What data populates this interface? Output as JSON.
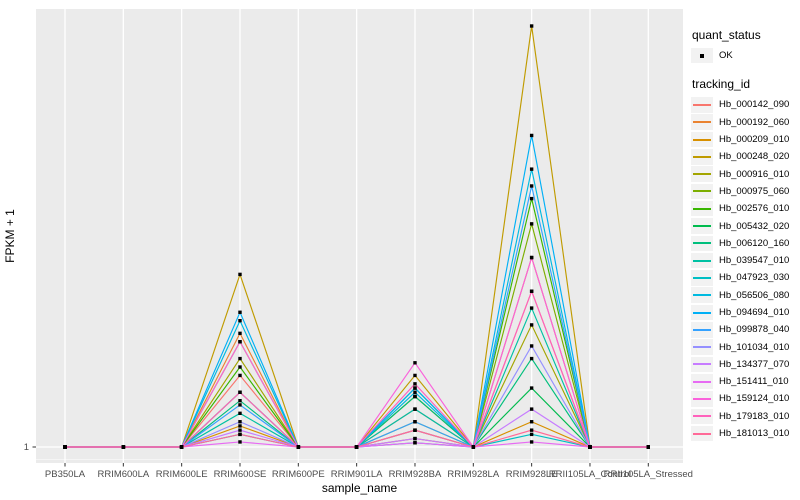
{
  "legend": {
    "quant_status": {
      "title": "quant_status",
      "items": [
        {
          "label": "OK"
        }
      ]
    },
    "tracking_id": {
      "title": "tracking_id"
    }
  },
  "chart_data": {
    "type": "line",
    "title": "",
    "xlabel": "sample_name",
    "ylabel": "FPKM + 1",
    "y_axis": {
      "scale": "log-like, only the value 1 is labeled",
      "ticks": [
        "1"
      ],
      "baseline_value": 1
    },
    "grid": "ggplot gray panel with white gridlines",
    "legend_position": "right",
    "point_marker": "small black square (quant_status = OK at every point)",
    "categories": [
      "PB350LA",
      "RRIM600LA",
      "RRIM600LE",
      "RRIM600SE",
      "RRIM600PE",
      "RRIM901LA",
      "RRIM928BA",
      "RRIM928LA",
      "RRIM928LE",
      "RRII105LA_Control",
      "RRII105LA_Stressed"
    ],
    "values_note": "values are relative peak heights above baseline (0 = FPKM+1 of 1), scaled so tallest peak = 1; peaks occur only at RRIM600SE, RRIM928BA and RRIM928LE",
    "series": [
      {
        "name": "Hb_000142_090",
        "color": "#F8766D",
        "values": [
          0,
          0,
          0,
          0.17,
          0,
          0,
          0.09,
          0,
          0.37,
          0,
          0
        ]
      },
      {
        "name": "Hb_000192_060",
        "color": "#EA8331",
        "values": [
          0,
          0,
          0,
          0.27,
          0,
          0,
          0.12,
          0,
          0.45,
          0,
          0
        ]
      },
      {
        "name": "Hb_000209_010",
        "color": "#D89000",
        "values": [
          0,
          0,
          0,
          0.05,
          0,
          0,
          0.02,
          0,
          0.06,
          0,
          0
        ]
      },
      {
        "name": "Hb_000248_020",
        "color": "#C09B00",
        "values": [
          0,
          0,
          0,
          0.41,
          0,
          0,
          0.17,
          0,
          1.0,
          0,
          0
        ]
      },
      {
        "name": "Hb_000916_010",
        "color": "#A3A500",
        "values": [
          0,
          0,
          0,
          0.21,
          0,
          0,
          0.06,
          0,
          0.29,
          0,
          0
        ]
      },
      {
        "name": "Hb_000975_060",
        "color": "#7CAE00",
        "values": [
          0,
          0,
          0,
          0.25,
          0,
          0,
          0.04,
          0,
          0.53,
          0,
          0
        ]
      },
      {
        "name": "Hb_002576_010",
        "color": "#39B600",
        "values": [
          0,
          0,
          0,
          0.19,
          0,
          0,
          0.12,
          0,
          0.59,
          0,
          0
        ]
      },
      {
        "name": "Hb_005432_020",
        "color": "#00BB4E",
        "values": [
          0,
          0,
          0,
          0.13,
          0,
          0,
          0.14,
          0,
          0.14,
          0,
          0
        ]
      },
      {
        "name": "Hb_006120_160",
        "color": "#00BF7D",
        "values": [
          0,
          0,
          0,
          0.11,
          0,
          0,
          0.12,
          0,
          0.21,
          0,
          0
        ]
      },
      {
        "name": "Hb_039547_010",
        "color": "#00C1A3",
        "values": [
          0,
          0,
          0,
          0.08,
          0,
          0,
          0.09,
          0,
          0.33,
          0,
          0
        ]
      },
      {
        "name": "Hb_047923_030",
        "color": "#00BFC4",
        "values": [
          0,
          0,
          0,
          0.03,
          0,
          0,
          0.01,
          0,
          0.03,
          0,
          0
        ]
      },
      {
        "name": "Hb_056506_080",
        "color": "#00BAE0",
        "values": [
          0,
          0,
          0,
          0.3,
          0,
          0,
          0.13,
          0,
          0.66,
          0,
          0
        ]
      },
      {
        "name": "Hb_094694_010",
        "color": "#00B0F6",
        "values": [
          0,
          0,
          0,
          0.32,
          0,
          0,
          0.14,
          0,
          0.74,
          0,
          0
        ]
      },
      {
        "name": "Hb_099878_040",
        "color": "#35A2FF",
        "values": [
          0,
          0,
          0,
          0.1,
          0,
          0,
          0.06,
          0,
          0.62,
          0,
          0
        ]
      },
      {
        "name": "Hb_101034_010",
        "color": "#9590FF",
        "values": [
          0,
          0,
          0,
          0.06,
          0,
          0,
          0.04,
          0,
          0.24,
          0,
          0
        ]
      },
      {
        "name": "Hb_134377_070",
        "color": "#C77CFF",
        "values": [
          0,
          0,
          0,
          0.04,
          0,
          0,
          0.02,
          0,
          0.09,
          0,
          0
        ]
      },
      {
        "name": "Hb_151411_010",
        "color": "#E76BF3",
        "values": [
          0,
          0,
          0,
          0.012,
          0,
          0,
          0.01,
          0,
          0.012,
          0,
          0
        ]
      },
      {
        "name": "Hb_159124_010",
        "color": "#FA62DB",
        "values": [
          0,
          0,
          0,
          0.25,
          0,
          0,
          0.2,
          0,
          0.45,
          0,
          0
        ]
      },
      {
        "name": "Hb_179183_010",
        "color": "#FF62BC",
        "values": [
          0,
          0,
          0,
          0.13,
          0,
          0,
          0.15,
          0,
          0.37,
          0,
          0
        ]
      },
      {
        "name": "Hb_181013_010",
        "color": "#FF6A98",
        "values": [
          0,
          0,
          0,
          0.03,
          0,
          0,
          0.04,
          0,
          0.04,
          0,
          0
        ]
      }
    ],
    "colors": {
      "panel_background": "#EBEBEB",
      "gridline": "#FFFFFF",
      "tick_label": "#4D4D4D",
      "axis_title": "#000000",
      "point": "#000000",
      "legend_key_background": "#F2F2F2"
    }
  }
}
